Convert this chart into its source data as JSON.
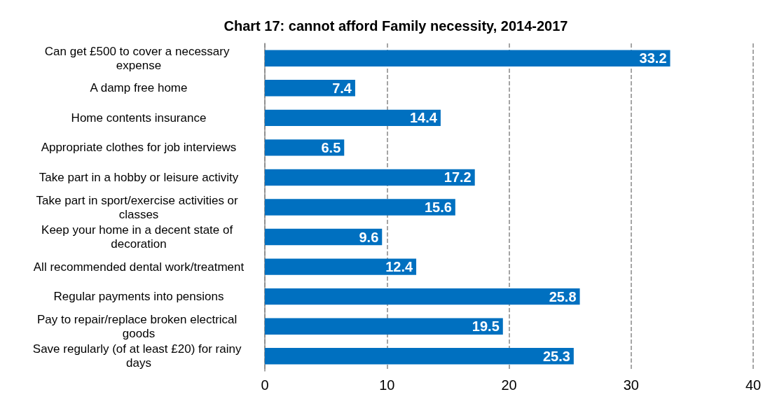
{
  "chart_data": {
    "type": "bar",
    "orientation": "horizontal",
    "title": "Chart 17: cannot afford Family necessity, 2014-2017",
    "categories": [
      "Can get £500 to cover a necessary expense",
      "A damp free home",
      "Home contents insurance",
      "Appropriate clothes for job interviews",
      "Take part in a hobby or leisure activity",
      "Take part in sport/exercise activities or classes",
      "Keep your home in a decent state of decoration",
      "All recommended dental work/treatment",
      "Regular payments into pensions",
      "Pay to repair/replace broken electrical goods",
      "Save regularly (of at least £20) for rainy days"
    ],
    "values": [
      33.2,
      7.4,
      14.4,
      6.5,
      17.2,
      15.6,
      9.6,
      12.4,
      25.8,
      19.5,
      25.3
    ],
    "color": "#0070c0",
    "xlim": [
      0,
      40
    ],
    "xticks": [
      0,
      10,
      20,
      30,
      40
    ],
    "grid": "x",
    "data_labels": true
  }
}
